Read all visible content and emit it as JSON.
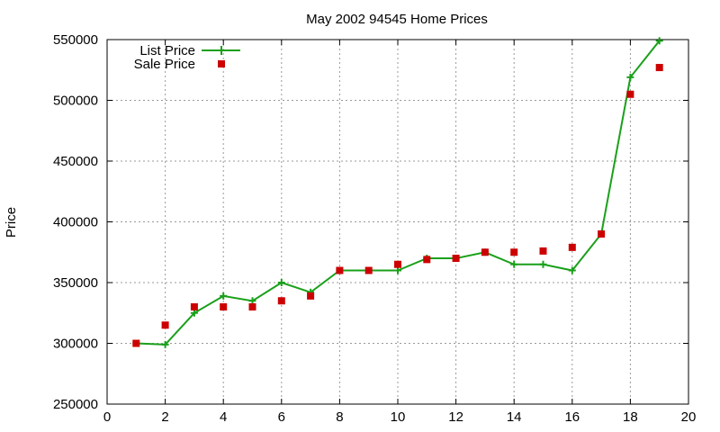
{
  "chart_data": {
    "type": "line",
    "title": "May 2002 94545 Home Prices",
    "xlabel": "",
    "ylabel": "Price",
    "xlim": [
      0,
      20
    ],
    "ylim": [
      250000,
      550000
    ],
    "x_ticks": [
      0,
      2,
      4,
      6,
      8,
      10,
      12,
      14,
      16,
      18,
      20
    ],
    "y_ticks": [
      250000,
      300000,
      350000,
      400000,
      450000,
      500000,
      550000
    ],
    "x_tick_labels": [
      "0",
      "2",
      "4",
      "6",
      "8",
      "10",
      "12",
      "14",
      "16",
      "18",
      "20"
    ],
    "y_tick_labels": [
      "250000",
      "300000",
      "350000",
      "400000",
      "450000",
      "500000",
      "550000"
    ],
    "grid": true,
    "legend_position": "top-left",
    "series": [
      {
        "name": "List Price",
        "style": "line-with-plus-markers",
        "color": "#1aa01a",
        "x": [
          1,
          2,
          3,
          4,
          5,
          6,
          7,
          8,
          9,
          10,
          11,
          12,
          13,
          14,
          15,
          16,
          17,
          18,
          19
        ],
        "values": [
          300000,
          299000,
          325000,
          339000,
          335000,
          350000,
          342000,
          360000,
          360000,
          360000,
          370000,
          370000,
          375000,
          365000,
          365000,
          360000,
          390000,
          519000,
          549000
        ]
      },
      {
        "name": "Sale Price",
        "style": "square-markers",
        "color": "#cc0000",
        "x": [
          1,
          2,
          3,
          4,
          5,
          6,
          7,
          8,
          9,
          10,
          11,
          12,
          13,
          14,
          15,
          16,
          17,
          18,
          19
        ],
        "values": [
          300000,
          315000,
          330000,
          330000,
          330000,
          335000,
          339000,
          360000,
          360000,
          365000,
          369000,
          370000,
          375000,
          375000,
          376000,
          379000,
          390000,
          505000,
          527000
        ]
      }
    ]
  }
}
